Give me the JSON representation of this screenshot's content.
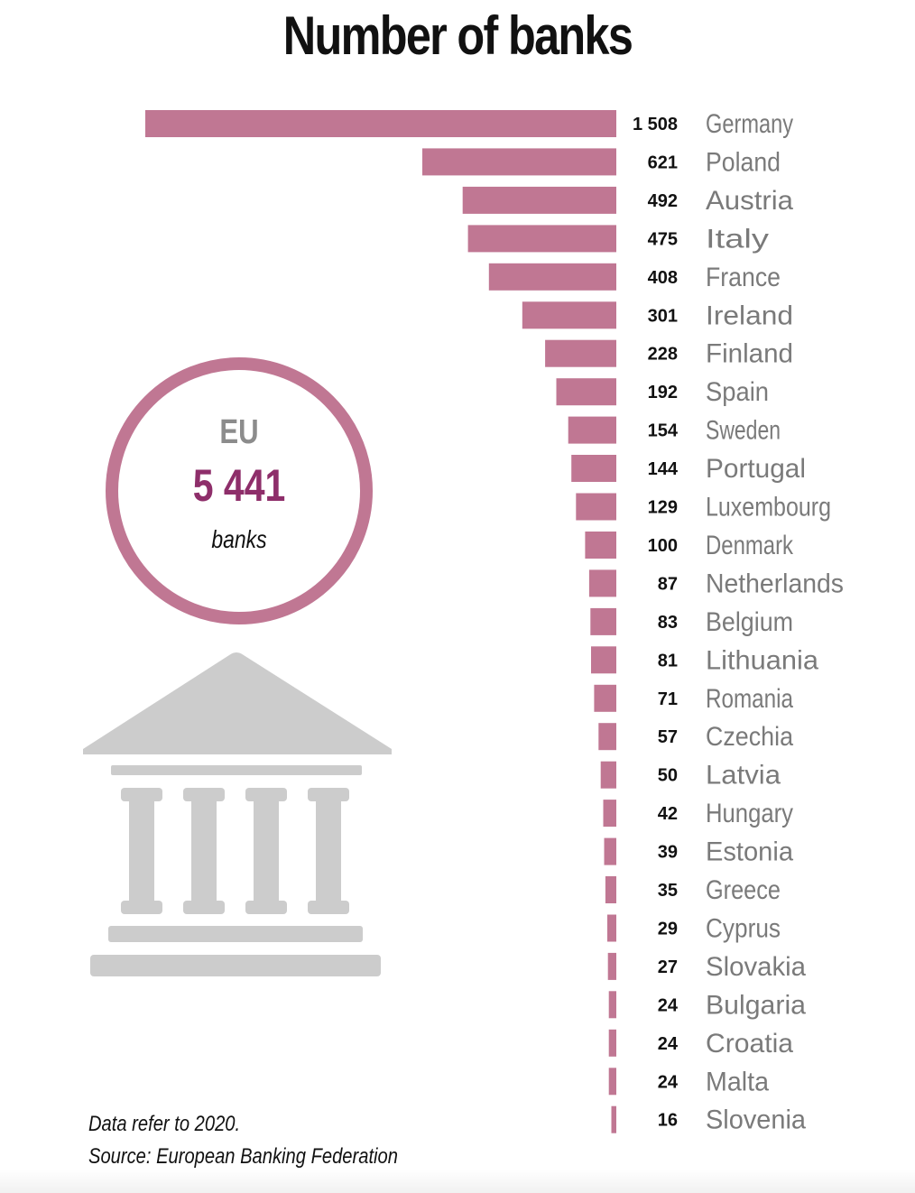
{
  "title": "Number of banks",
  "summary": {
    "label": "EU",
    "total": "5 441",
    "unit": "banks"
  },
  "notes": {
    "year": "Data refer to 2020.",
    "source": "Source: European Banking Federation"
  },
  "icons": {
    "building": "bank-building-icon"
  },
  "colors": {
    "bar": "#c07793",
    "total": "#8e2e6a",
    "country_label": "#7a7a7a",
    "icon": "#cccccc"
  },
  "chart_data": {
    "type": "bar",
    "orientation": "horizontal",
    "title": "Number of banks",
    "categories": [
      "Germany",
      "Poland",
      "Austria",
      "Italy",
      "France",
      "Ireland",
      "Finland",
      "Spain",
      "Sweden",
      "Portugal",
      "Luxembourg",
      "Denmark",
      "Netherlands",
      "Belgium",
      "Lithuania",
      "Romania",
      "Czechia",
      "Latvia",
      "Hungary",
      "Estonia",
      "Greece",
      "Cyprus",
      "Slovakia",
      "Bulgaria",
      "Croatia",
      "Malta",
      "Slovenia"
    ],
    "values": [
      1508,
      621,
      492,
      475,
      408,
      301,
      228,
      192,
      154,
      144,
      129,
      100,
      87,
      83,
      81,
      71,
      57,
      50,
      42,
      39,
      35,
      29,
      27,
      24,
      24,
      24,
      16
    ],
    "value_labels": [
      "1 508",
      "621",
      "492",
      "475",
      "408",
      "301",
      "228",
      "192",
      "154",
      "144",
      "129",
      "100",
      "87",
      "83",
      "81",
      "71",
      "57",
      "50",
      "42",
      "39",
      "35",
      "29",
      "27",
      "24",
      "24",
      "24",
      "16"
    ],
    "xlim": [
      0,
      1508
    ],
    "grid": false,
    "legend": "none"
  }
}
